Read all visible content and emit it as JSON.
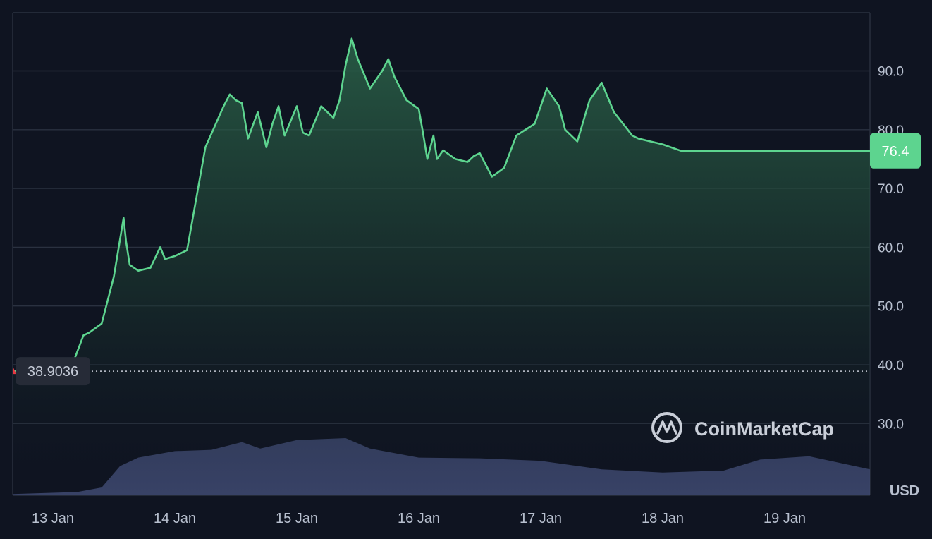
{
  "chart_data": {
    "type": "area",
    "currency": "USD",
    "ylim": [
      20,
      100
    ],
    "y_ticks": [
      30,
      40,
      50,
      60,
      70,
      80,
      90
    ],
    "y_tick_labels": [
      "30.0",
      "40.0",
      "50.0",
      "60.0",
      "70.0",
      "80.0",
      "90.0"
    ],
    "x_ticks": [
      "13 Jan",
      "14 Jan",
      "15 Jan",
      "16 Jan",
      "17 Jan",
      "18 Jan",
      "19 Jan"
    ],
    "grid": true,
    "current_price": 76.4,
    "current_price_label": "76.4",
    "open_price": 38.9036,
    "open_price_label": "38.9036",
    "watermark": "CoinMarketCap",
    "line_color": "#5dd48f",
    "volume_color": "#3f4a72",
    "price": {
      "x": [
        0,
        0.15,
        0.25,
        0.3,
        0.4,
        0.5,
        0.58,
        0.6,
        0.63,
        0.7,
        0.8,
        0.88,
        0.92,
        1.0,
        1.1,
        1.25,
        1.4,
        1.45,
        1.5,
        1.55,
        1.6,
        1.68,
        1.75,
        1.8,
        1.85,
        1.9,
        2.0,
        2.05,
        2.1,
        2.2,
        2.3,
        2.35,
        2.4,
        2.45,
        2.5,
        2.6,
        2.7,
        2.75,
        2.8,
        2.9,
        3.0,
        3.03,
        3.07,
        3.12,
        3.15,
        3.2,
        3.3,
        3.4,
        3.45,
        3.5,
        3.6,
        3.7,
        3.8,
        3.95,
        4.05,
        4.15,
        4.2,
        4.3,
        4.4,
        4.5,
        4.6,
        4.75,
        4.8,
        4.9,
        5.0,
        5.15,
        5.2,
        5.25,
        5.3,
        5.4,
        5.5,
        5.6,
        5.7,
        5.75,
        5.8,
        5.9,
        6.0,
        6.05,
        6.1,
        6.2,
        6.3,
        6.4,
        6.5,
        6.6
      ],
      "y": [
        38.9,
        39.5,
        45.0,
        45.5,
        47.0,
        55.0,
        65.0,
        61.0,
        57.0,
        56.0,
        56.5,
        60.0,
        58.0,
        58.5,
        59.5,
        77.0,
        84.0,
        86.0,
        85.0,
        84.5,
        78.5,
        83.0,
        77.0,
        81.0,
        84.0,
        79.0,
        84.0,
        79.5,
        79.0,
        84.0,
        82.0,
        85.0,
        91.0,
        95.5,
        92.0,
        87.0,
        90.0,
        92.0,
        89.0,
        85.0,
        83.5,
        80.0,
        75.0,
        79.0,
        75.0,
        76.5,
        75.0,
        74.5,
        75.5,
        76.0,
        72.0,
        73.5,
        79.0,
        81.0,
        87.0,
        84.0,
        80.0,
        78.0,
        85.0,
        88.0,
        83.0,
        79.0,
        78.5,
        78.0,
        77.5,
        76.4,
        76.4,
        76.4,
        76.4,
        76.4,
        76.4,
        76.4,
        76.4,
        76.4,
        76.4,
        76.4,
        76.4,
        76.4,
        76.4,
        76.4,
        76.4,
        76.4,
        76.4,
        76.4
      ]
    },
    "volume": {
      "x": [
        0,
        0.2,
        0.4,
        0.55,
        0.7,
        1.0,
        1.3,
        1.55,
        1.7,
        2.0,
        2.4,
        2.6,
        3.0,
        3.5,
        4.0,
        4.5,
        5.0,
        5.5,
        5.8,
        6.2,
        6.6
      ],
      "y": [
        0.02,
        0.05,
        0.12,
        0.45,
        0.58,
        0.68,
        0.7,
        0.82,
        0.72,
        0.85,
        0.88,
        0.72,
        0.58,
        0.57,
        0.53,
        0.4,
        0.35,
        0.38,
        0.55,
        0.6,
        0.4
      ]
    }
  }
}
